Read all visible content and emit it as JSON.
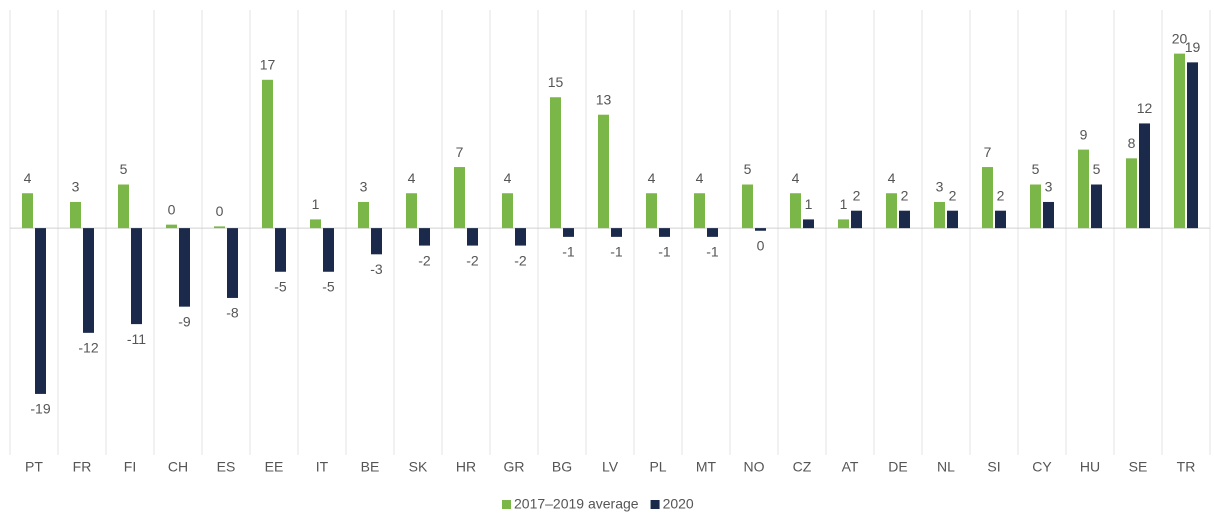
{
  "chart_data": {
    "type": "bar",
    "categories": [
      "PT",
      "FR",
      "FI",
      "CH",
      "ES",
      "EE",
      "IT",
      "BE",
      "SK",
      "HR",
      "GR",
      "BG",
      "LV",
      "PL",
      "MT",
      "NO",
      "CZ",
      "AT",
      "DE",
      "NL",
      "SI",
      "CY",
      "HU",
      "SE",
      "TR"
    ],
    "series": [
      {
        "name": "2017–2019 average",
        "color": "#7ab648",
        "values": [
          4,
          3,
          5,
          0.4,
          0.2,
          17,
          1,
          3,
          4,
          7,
          4,
          15,
          13,
          4,
          4,
          5,
          4,
          1,
          4,
          3,
          7,
          5,
          9,
          8,
          20
        ],
        "value_labels": [
          "4",
          "3",
          "5",
          "0",
          "0",
          "17",
          "1",
          "3",
          "4",
          "7",
          "4",
          "15",
          "13",
          "4",
          "4",
          "5",
          "4",
          "1",
          "4",
          "3",
          "7",
          "5",
          "9",
          "8",
          "20"
        ]
      },
      {
        "name": "2020",
        "color": "#1b2a4a",
        "values": [
          -19,
          -12,
          -11,
          -9,
          -8,
          -5,
          -5,
          -3,
          -2,
          -2,
          -2,
          -1,
          -1,
          -1,
          -1,
          -0.3,
          1,
          2,
          2,
          2,
          2,
          3,
          5,
          12,
          19
        ],
        "value_labels": [
          "-19",
          "-12",
          "-11",
          "-9",
          "-8",
          "-5",
          "-5",
          "-3",
          "-2",
          "-2",
          "-2",
          "-1",
          "-1",
          "-1",
          "-1",
          "0",
          "1",
          "2",
          "2",
          "2",
          "2",
          "3",
          "5",
          "12",
          "19"
        ]
      }
    ],
    "ylim": [
      -26,
      25
    ],
    "grid": true,
    "legend": "bottom"
  }
}
